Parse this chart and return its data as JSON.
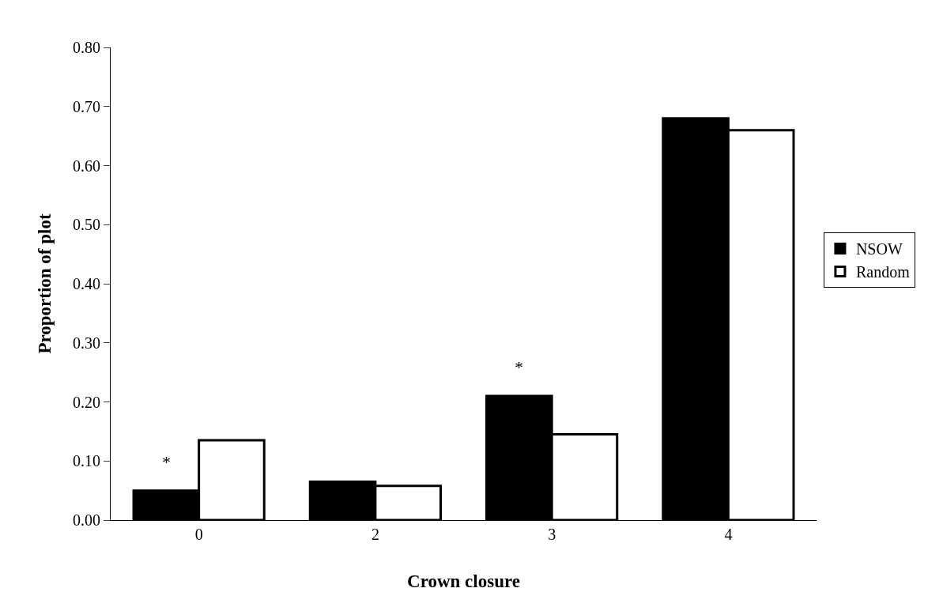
{
  "chart_data": {
    "type": "bar",
    "xlabel": "Crown closure",
    "ylabel": "Proportion of plot",
    "categories": [
      "0",
      "2",
      "3",
      "4"
    ],
    "series": [
      {
        "name": "NSOW",
        "color": "#000000",
        "values": [
          0.05,
          0.065,
          0.21,
          0.68
        ]
      },
      {
        "name": "Random",
        "color": "#ffffff",
        "values": [
          0.135,
          0.058,
          0.145,
          0.66
        ]
      }
    ],
    "ylim": [
      0,
      0.8
    ],
    "yticks": [
      {
        "value": 0,
        "label": "0.00"
      },
      {
        "value": 0.1,
        "label": "0.10"
      },
      {
        "value": 0.2,
        "label": "0.20"
      },
      {
        "value": 0.3,
        "label": "0.30"
      },
      {
        "value": 0.4,
        "label": "0.40"
      },
      {
        "value": 0.5,
        "label": "0.50"
      },
      {
        "value": 0.6,
        "label": "0.60"
      },
      {
        "value": 0.7,
        "label": "0.70"
      },
      {
        "value": 0.8,
        "label": "0.80"
      }
    ],
    "annotations": [
      {
        "text": "*",
        "x": "0",
        "y": 0.05
      },
      {
        "text": "*",
        "x": "3",
        "y": 0.21
      }
    ],
    "legend": "right",
    "grid": false
  }
}
